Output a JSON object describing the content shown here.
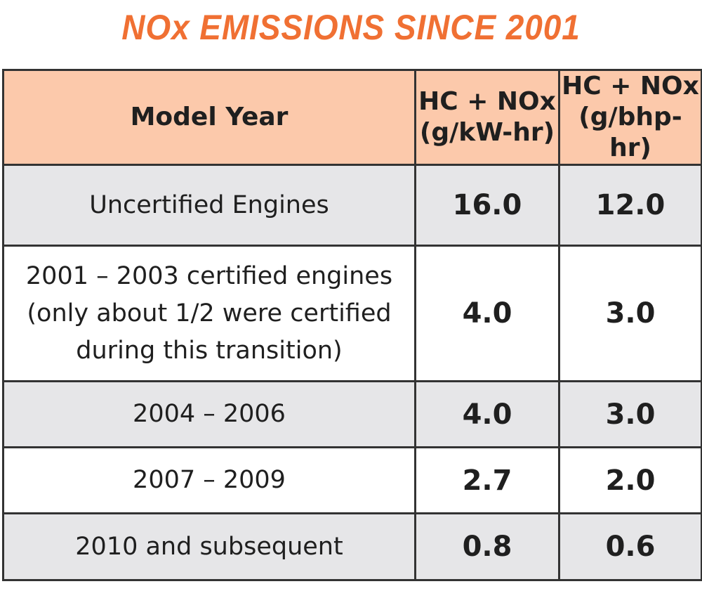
{
  "title": "NOx EMISSIONS SINCE 2001",
  "colors": {
    "title": "#f07033",
    "header_bg": "#fcc9ab",
    "row_gray": "#e6e6e8",
    "row_white": "#ffffff",
    "border": "#333333"
  },
  "table": {
    "headers": [
      {
        "lines": [
          "Model Year"
        ]
      },
      {
        "lines": [
          "HC + NOx",
          "(g/kW-hr)"
        ]
      },
      {
        "lines": [
          "HC + NOx",
          "(g/bhp-hr)"
        ]
      }
    ],
    "rows": [
      {
        "model_year_lines": [
          "Uncertified Engines"
        ],
        "g_kw_hr": "16.0",
        "g_bhp_hr": "12.0"
      },
      {
        "model_year_lines": [
          "2001 – 2003 certified engines",
          "(only about 1/2 were certified",
          "during this transition)"
        ],
        "g_kw_hr": "4.0",
        "g_bhp_hr": "3.0"
      },
      {
        "model_year_lines": [
          "2004 – 2006"
        ],
        "g_kw_hr": "4.0",
        "g_bhp_hr": "3.0"
      },
      {
        "model_year_lines": [
          "2007 – 2009"
        ],
        "g_kw_hr": "2.7",
        "g_bhp_hr": "2.0"
      },
      {
        "model_year_lines": [
          "2010 and subsequent"
        ],
        "g_kw_hr": "0.8",
        "g_bhp_hr": "0.6"
      }
    ]
  }
}
